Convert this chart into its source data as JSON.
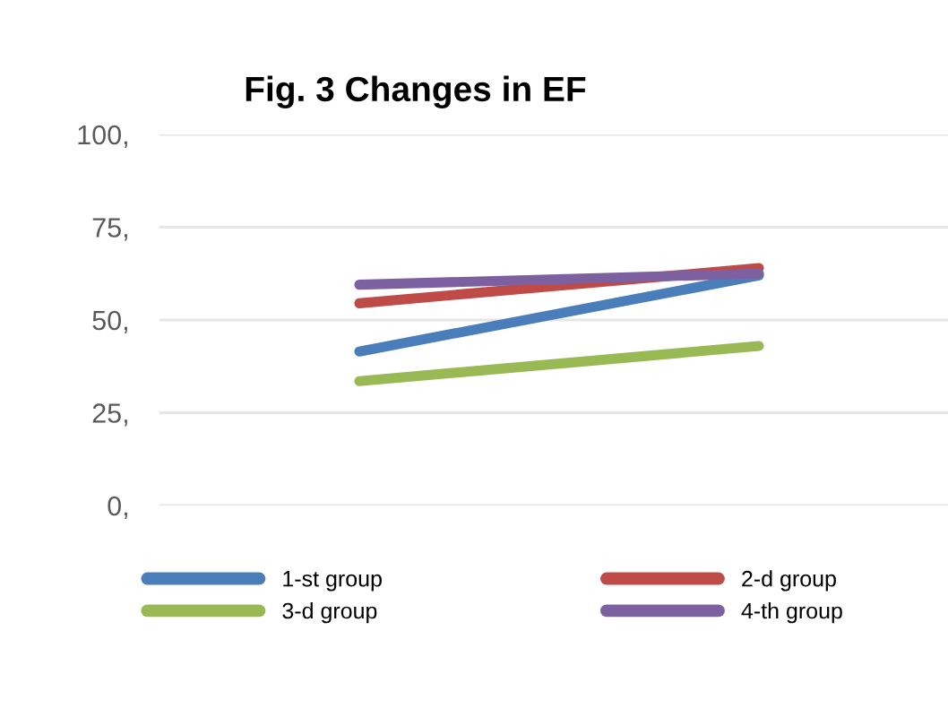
{
  "chart_data": {
    "type": "line",
    "title": "Fig. 3 Changes in EF",
    "categories": [
      null,
      null
    ],
    "series": [
      {
        "name": "1-st group",
        "color": "#4a7ebb",
        "values": [
          41.5,
          62
        ]
      },
      {
        "name": "2-d group",
        "color": "#be4b48",
        "values": [
          54.5,
          64
        ]
      },
      {
        "name": "3-d group",
        "color": "#98b954",
        "values": [
          33.5,
          43
        ]
      },
      {
        "name": "4-th group",
        "color": "#7d60a0",
        "values": [
          59.5,
          62.5
        ]
      }
    ],
    "ylim": [
      0,
      100
    ],
    "yticks": [
      {
        "value": 0,
        "label": "0,"
      },
      {
        "value": 25,
        "label": "25,"
      },
      {
        "value": 50,
        "label": "50,"
      },
      {
        "value": 75,
        "label": "75,"
      },
      {
        "value": 100,
        "label": "100,"
      }
    ],
    "grid": "y",
    "legend": "bottom",
    "marker": "none",
    "line_style": "solid"
  }
}
